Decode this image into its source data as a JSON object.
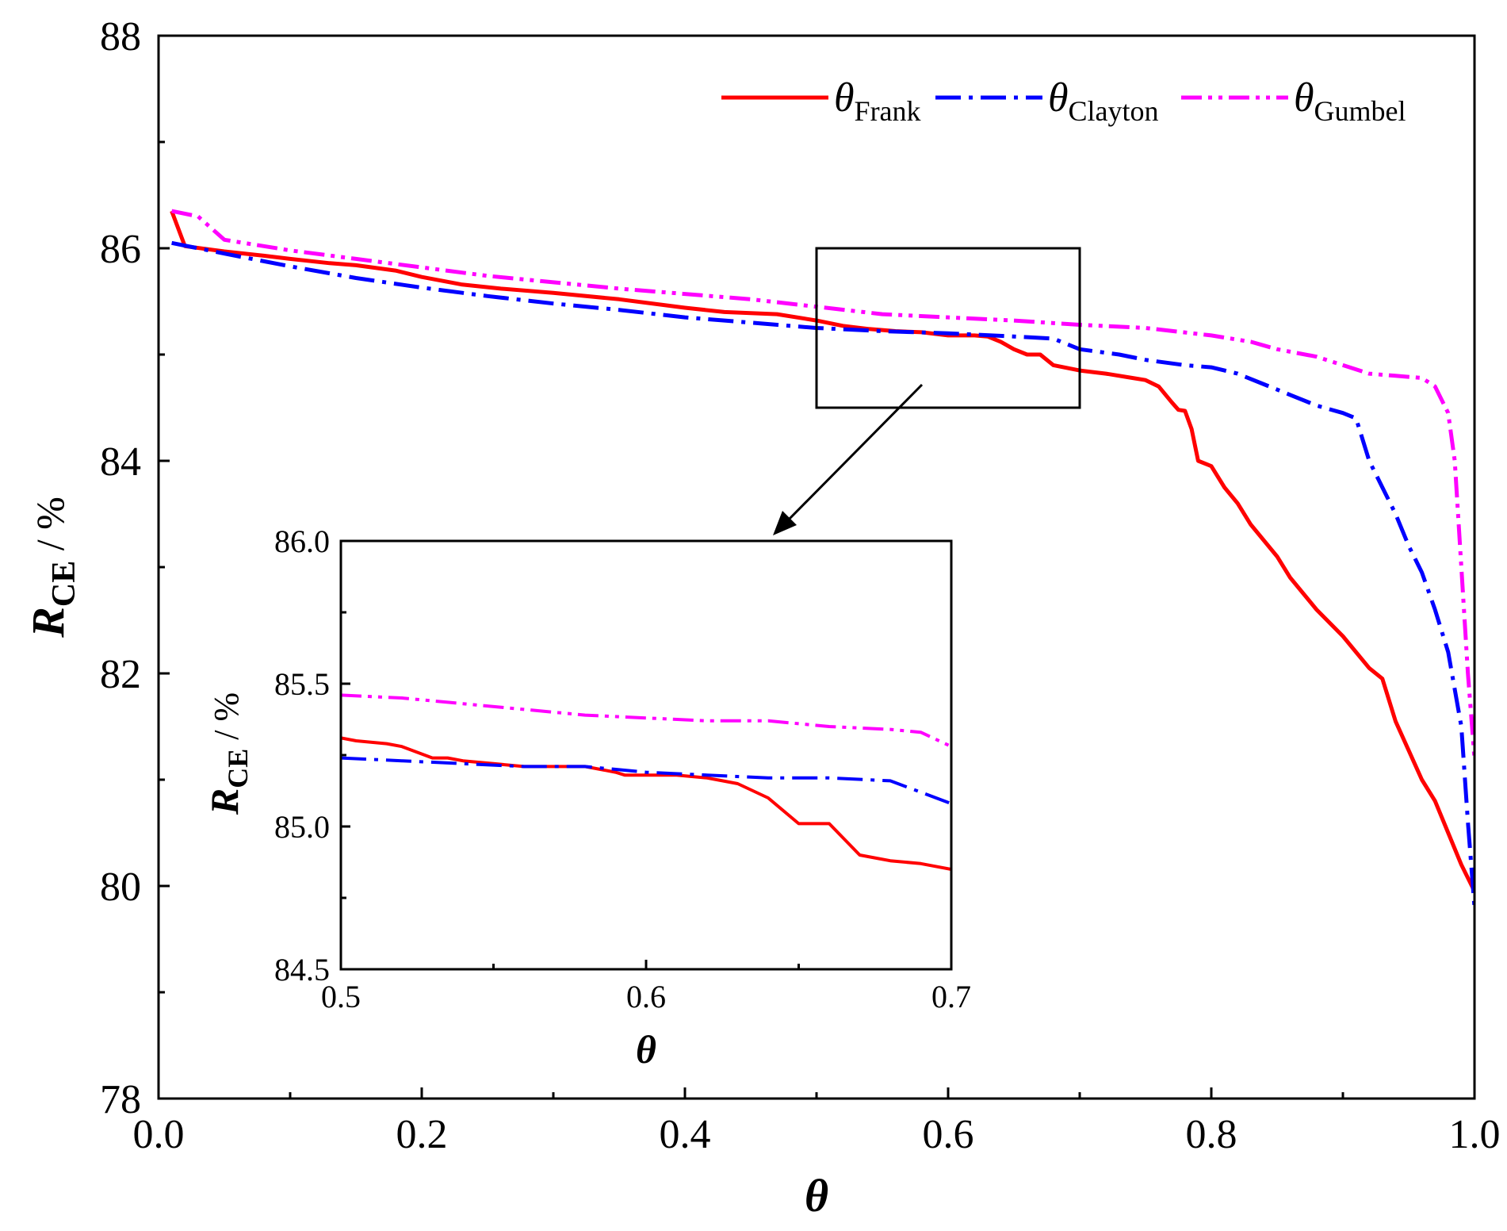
{
  "chart_data": [
    {
      "type": "line",
      "role": "main",
      "xlabel": "θ",
      "ylabel_main": "R",
      "ylabel_sub": "CE",
      "ylabel_unit": " / %",
      "xlim": [
        0.0,
        1.0
      ],
      "ylim": [
        78,
        88
      ],
      "x_ticks": [
        0.0,
        0.2,
        0.4,
        0.6,
        0.8,
        1.0
      ],
      "x_tick_labels": [
        "0.0",
        "0.2",
        "0.4",
        "0.6",
        "0.8",
        "1.0"
      ],
      "y_ticks": [
        78,
        80,
        82,
        84,
        86,
        88
      ],
      "y_tick_labels": [
        "78",
        "80",
        "82",
        "84",
        "86",
        "88"
      ],
      "legend": "top-right",
      "series": [
        {
          "name": "θ",
          "sub": "Frank",
          "color": "#ff0000",
          "dash": "solid",
          "x": [
            0.01,
            0.02,
            0.05,
            0.08,
            0.1,
            0.13,
            0.15,
            0.18,
            0.2,
            0.23,
            0.26,
            0.3,
            0.35,
            0.4,
            0.43,
            0.47,
            0.5,
            0.52,
            0.54,
            0.56,
            0.58,
            0.6,
            0.62,
            0.63,
            0.64,
            0.65,
            0.66,
            0.67,
            0.68,
            0.7,
            0.72,
            0.74,
            0.75,
            0.76,
            0.77,
            0.775,
            0.78,
            0.785,
            0.79,
            0.8,
            0.81,
            0.82,
            0.83,
            0.84,
            0.85,
            0.86,
            0.88,
            0.9,
            0.92,
            0.93,
            0.94,
            0.96,
            0.97,
            0.98,
            0.99,
            1.0
          ],
          "y": [
            86.35,
            86.02,
            85.97,
            85.93,
            85.9,
            85.86,
            85.84,
            85.79,
            85.73,
            85.66,
            85.62,
            85.58,
            85.52,
            85.44,
            85.4,
            85.38,
            85.32,
            85.27,
            85.24,
            85.22,
            85.21,
            85.18,
            85.18,
            85.17,
            85.12,
            85.05,
            85.0,
            85.0,
            84.9,
            84.85,
            84.82,
            84.78,
            84.76,
            84.7,
            84.55,
            84.48,
            84.47,
            84.3,
            84.0,
            83.95,
            83.75,
            83.6,
            83.4,
            83.25,
            83.1,
            82.9,
            82.6,
            82.35,
            82.05,
            81.95,
            81.55,
            81.0,
            80.8,
            80.5,
            80.2,
            79.95
          ]
        },
        {
          "name": "θ",
          "sub": "Clayton",
          "color": "#0000ff",
          "dash": "dashdot",
          "x": [
            0.01,
            0.05,
            0.1,
            0.15,
            0.2,
            0.25,
            0.3,
            0.35,
            0.4,
            0.45,
            0.5,
            0.55,
            0.6,
            0.65,
            0.68,
            0.7,
            0.73,
            0.75,
            0.78,
            0.8,
            0.82,
            0.84,
            0.86,
            0.88,
            0.9,
            0.91,
            0.92,
            0.93,
            0.94,
            0.95,
            0.96,
            0.97,
            0.98,
            0.99,
            0.995,
            1.0
          ],
          "y": [
            86.05,
            85.95,
            85.83,
            85.72,
            85.63,
            85.55,
            85.48,
            85.42,
            85.35,
            85.3,
            85.25,
            85.22,
            85.2,
            85.17,
            85.15,
            85.05,
            85.0,
            84.95,
            84.9,
            84.88,
            84.82,
            84.72,
            84.62,
            84.52,
            84.45,
            84.4,
            84.0,
            83.75,
            83.5,
            83.2,
            82.95,
            82.6,
            82.2,
            81.5,
            80.6,
            79.8
          ]
        },
        {
          "name": "θ",
          "sub": "Gumbel",
          "color": "#ff00ff",
          "dash": "dashdotdot",
          "x": [
            0.01,
            0.03,
            0.05,
            0.1,
            0.15,
            0.2,
            0.25,
            0.3,
            0.35,
            0.4,
            0.45,
            0.5,
            0.55,
            0.6,
            0.65,
            0.7,
            0.75,
            0.8,
            0.83,
            0.85,
            0.88,
            0.9,
            0.92,
            0.94,
            0.96,
            0.97,
            0.98,
            0.985,
            0.99,
            0.995,
            1.0
          ],
          "y": [
            86.35,
            86.3,
            86.08,
            85.98,
            85.9,
            85.82,
            85.74,
            85.68,
            85.62,
            85.57,
            85.52,
            85.45,
            85.38,
            85.35,
            85.32,
            85.28,
            85.25,
            85.18,
            85.12,
            85.05,
            84.98,
            84.9,
            84.82,
            84.8,
            84.78,
            84.7,
            84.45,
            84.0,
            83.0,
            82.0,
            81.2
          ]
        }
      ]
    },
    {
      "type": "line",
      "role": "inset",
      "xlabel": "θ",
      "ylabel_main": "R",
      "ylabel_sub": "CE",
      "ylabel_unit": " / %",
      "xlim": [
        0.5,
        0.7
      ],
      "ylim": [
        84.5,
        86.0
      ],
      "x_ticks": [
        0.5,
        0.6,
        0.7
      ],
      "x_tick_labels": [
        "0.5",
        "0.6",
        "0.7"
      ],
      "y_ticks": [
        84.5,
        85.0,
        85.5,
        86.0
      ],
      "y_tick_labels": [
        "84.5",
        "85.0",
        "85.5",
        "86.0"
      ],
      "series": [
        {
          "name": "θ",
          "sub": "Frank",
          "color": "#ff0000",
          "dash": "solid",
          "x": [
            0.5,
            0.505,
            0.515,
            0.52,
            0.53,
            0.535,
            0.54,
            0.55,
            0.56,
            0.575,
            0.58,
            0.59,
            0.593,
            0.6,
            0.61,
            0.62,
            0.625,
            0.63,
            0.64,
            0.65,
            0.66,
            0.67,
            0.675,
            0.68,
            0.69,
            0.7
          ],
          "y": [
            85.31,
            85.3,
            85.29,
            85.28,
            85.24,
            85.24,
            85.23,
            85.22,
            85.21,
            85.21,
            85.21,
            85.19,
            85.18,
            85.18,
            85.18,
            85.17,
            85.16,
            85.15,
            85.1,
            85.01,
            85.01,
            84.9,
            84.89,
            84.88,
            84.87,
            84.85
          ]
        },
        {
          "name": "θ",
          "sub": "Clayton",
          "color": "#0000ff",
          "dash": "dashdot",
          "x": [
            0.5,
            0.52,
            0.54,
            0.56,
            0.58,
            0.6,
            0.62,
            0.64,
            0.66,
            0.68,
            0.69,
            0.7
          ],
          "y": [
            85.24,
            85.23,
            85.22,
            85.21,
            85.21,
            85.19,
            85.18,
            85.17,
            85.17,
            85.16,
            85.12,
            85.08
          ]
        },
        {
          "name": "θ",
          "sub": "Gumbel",
          "color": "#ff00ff",
          "dash": "dashdotdot",
          "x": [
            0.5,
            0.52,
            0.54,
            0.56,
            0.58,
            0.6,
            0.62,
            0.64,
            0.66,
            0.68,
            0.69,
            0.7
          ],
          "y": [
            85.46,
            85.45,
            85.43,
            85.41,
            85.39,
            85.38,
            85.37,
            85.37,
            85.35,
            85.34,
            85.33,
            85.28
          ]
        }
      ]
    }
  ]
}
